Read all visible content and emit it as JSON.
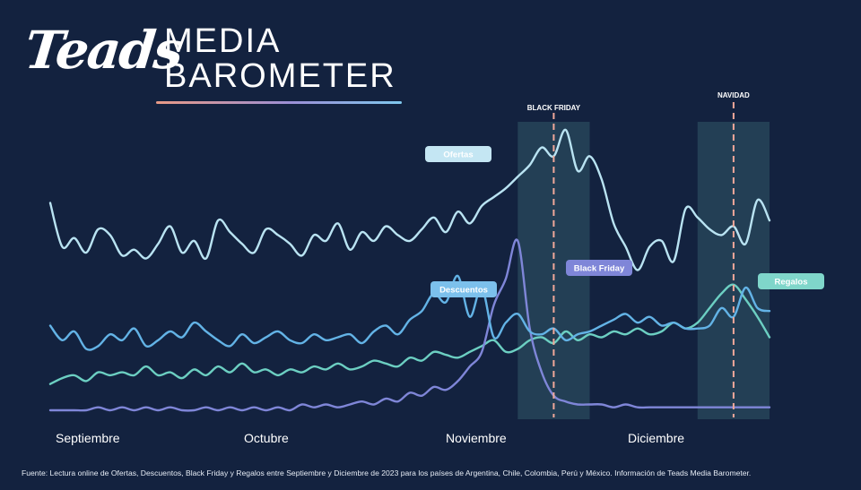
{
  "brand": {
    "logo": "Teads",
    "title_line1": "MEDIA",
    "title_line2": "BAROMETER"
  },
  "footnote": "Fuente: Lectura online de Ofertas, Descuentos, Black Friday y Regalos entre Septiembre y Diciembre de 2023 para los países de Argentina, Chile, Colombia, Perú y México. Información de Teads Media Barometer.",
  "colors": {
    "background": "#13223f",
    "ofertas": "#b9e3f2",
    "descuentos": "#63b3e6",
    "black_friday": "#7f86d8",
    "regalos": "#6ccfc2",
    "event_band": "#2a4a5e",
    "event_line": "#f0a89a"
  },
  "chart_data": {
    "type": "line",
    "title": "",
    "xlabel": "",
    "ylabel": "",
    "ylim": [
      0,
      100
    ],
    "x_ticks": [
      "Septiembre",
      "Octubre",
      "Noviembre",
      "Diciembre"
    ],
    "x": [
      1,
      3,
      5,
      7,
      9,
      11,
      13,
      15,
      17,
      19,
      21,
      23,
      25,
      27,
      29,
      31,
      33,
      35,
      37,
      39,
      41,
      43,
      45,
      47,
      49,
      51,
      53,
      55,
      57,
      59,
      61,
      63,
      65,
      67,
      69,
      71,
      73,
      75,
      77,
      79,
      81,
      83,
      85,
      87,
      89,
      91,
      93,
      95,
      97,
      99,
      101,
      103,
      105,
      107,
      109,
      111,
      113,
      115,
      117,
      119,
      121
    ],
    "events": [
      {
        "label": "BLACK FRIDAY",
        "x": 85,
        "band_start": 79,
        "band_end": 91
      },
      {
        "label": "NAVIDAD",
        "x": 115,
        "band_start": 109,
        "band_end": 121
      }
    ],
    "series": [
      {
        "name": "Ofertas",
        "values": [
          71,
          56,
          59,
          54,
          62,
          60,
          53,
          55,
          52,
          57,
          63,
          54,
          58,
          52,
          65,
          61,
          57,
          54,
          62,
          60,
          57,
          53,
          60,
          58,
          64,
          55,
          61,
          58,
          63,
          60,
          58,
          62,
          66,
          61,
          68,
          64,
          70,
          73,
          76,
          80,
          84,
          90,
          87,
          96,
          82,
          87,
          79,
          64,
          56,
          48,
          56,
          58,
          51,
          69,
          66,
          62,
          60,
          63,
          57,
          72,
          65
        ],
        "legend_label": "Ofertas"
      },
      {
        "name": "Descuentos",
        "values": [
          29,
          24,
          27,
          21,
          22,
          26,
          24,
          28,
          22,
          24,
          27,
          25,
          30,
          27,
          24,
          22,
          26,
          23,
          25,
          27,
          24,
          23,
          26,
          24,
          25,
          26,
          23,
          27,
          29,
          26,
          31,
          34,
          40,
          37,
          46,
          32,
          42,
          25,
          30,
          33,
          27,
          26,
          28,
          24,
          26,
          27,
          29,
          31,
          33,
          30,
          32,
          29,
          30,
          28,
          28,
          29,
          35,
          32,
          42,
          35,
          34
        ],
        "legend_label": "Descuentos"
      },
      {
        "name": "Black Friday",
        "values": [
          0,
          0,
          0,
          0,
          1,
          0,
          1,
          0,
          1,
          0,
          1,
          0,
          0,
          1,
          0,
          1,
          0,
          1,
          0,
          1,
          0,
          2,
          1,
          2,
          1,
          2,
          3,
          2,
          4,
          3,
          6,
          5,
          8,
          7,
          10,
          15,
          20,
          36,
          45,
          58,
          28,
          13,
          5,
          3,
          2,
          2,
          2,
          1,
          2,
          1,
          1,
          1,
          1,
          1,
          1,
          1,
          1,
          1,
          1,
          1,
          1
        ],
        "legend_label": "Black Friday"
      },
      {
        "name": "Regalos",
        "values": [
          9,
          11,
          12,
          10,
          13,
          12,
          13,
          12,
          15,
          12,
          13,
          11,
          14,
          12,
          15,
          13,
          16,
          13,
          14,
          12,
          14,
          13,
          15,
          14,
          16,
          14,
          15,
          17,
          16,
          15,
          18,
          17,
          20,
          19,
          18,
          20,
          22,
          24,
          20,
          21,
          24,
          25,
          23,
          27,
          24,
          26,
          25,
          27,
          26,
          28,
          26,
          27,
          30,
          28,
          30,
          35,
          40,
          43,
          38,
          32,
          25
        ],
        "legend_label": "Regalos"
      }
    ],
    "legend_placement": "inline labels near each line",
    "grid": false
  }
}
